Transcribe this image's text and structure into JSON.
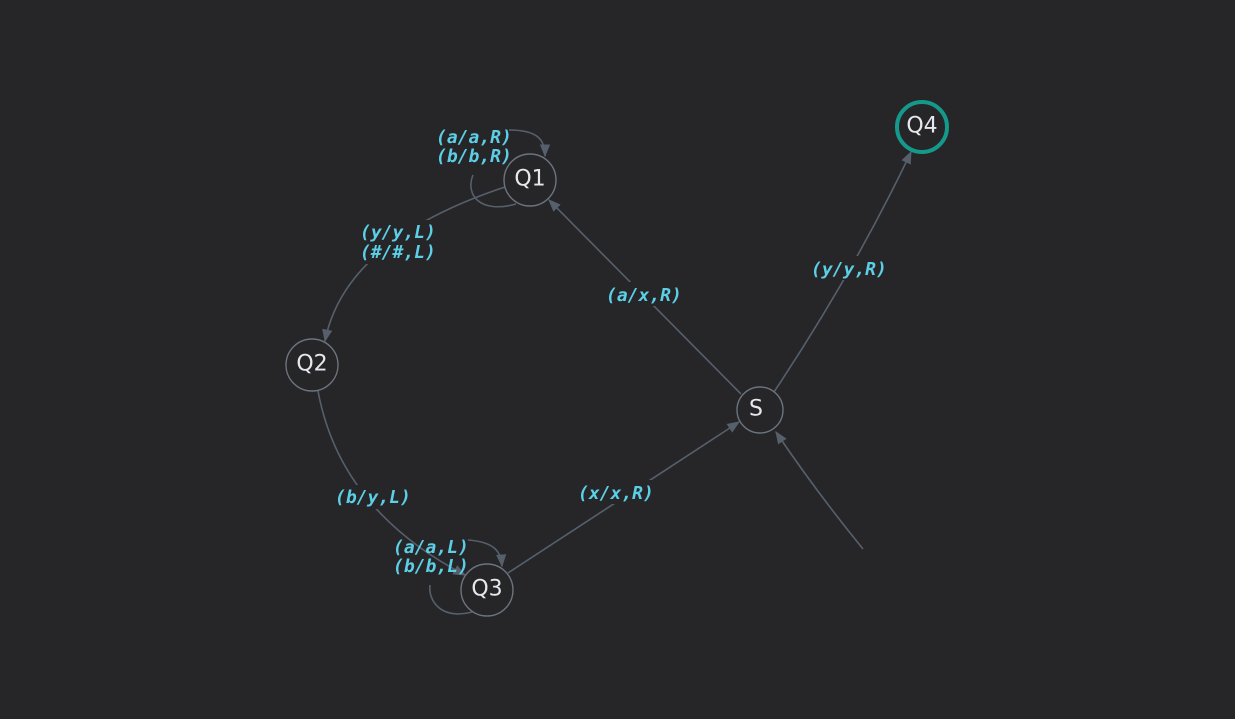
{
  "diagram": {
    "type": "state-machine",
    "colors": {
      "background": "#262628",
      "edge": "#56606c",
      "node_stroke": "#6c7480",
      "accept_stroke": "#14998a",
      "label": "#5ccfe6",
      "node_text": "#e6e8ee"
    },
    "nodes": [
      {
        "id": "S",
        "label": "S",
        "accepting": false,
        "initial": true
      },
      {
        "id": "Q1",
        "label": "Q1",
        "accepting": false
      },
      {
        "id": "Q2",
        "label": "Q2",
        "accepting": false
      },
      {
        "id": "Q3",
        "label": "Q3",
        "accepting": false
      },
      {
        "id": "Q4",
        "label": "Q4",
        "accepting": true
      }
    ],
    "transitions": [
      {
        "from": "S",
        "to": "Q1",
        "labels": [
          "(a/x,R)"
        ]
      },
      {
        "from": "S",
        "to": "Q4",
        "labels": [
          "(y/y,R)"
        ]
      },
      {
        "from": "Q1",
        "to": "Q1",
        "labels": [
          "(a/a,R)",
          "(b/b,R)"
        ]
      },
      {
        "from": "Q1",
        "to": "Q2",
        "labels": [
          "(y/y,L)",
          "(#/#,L)"
        ]
      },
      {
        "from": "Q2",
        "to": "Q3",
        "labels": [
          "(b/y,L)"
        ]
      },
      {
        "from": "Q3",
        "to": "Q3",
        "labels": [
          "(a/a,L)",
          "(b/b,L)"
        ]
      },
      {
        "from": "Q3",
        "to": "S",
        "labels": [
          "(x/x,R)"
        ]
      }
    ]
  }
}
